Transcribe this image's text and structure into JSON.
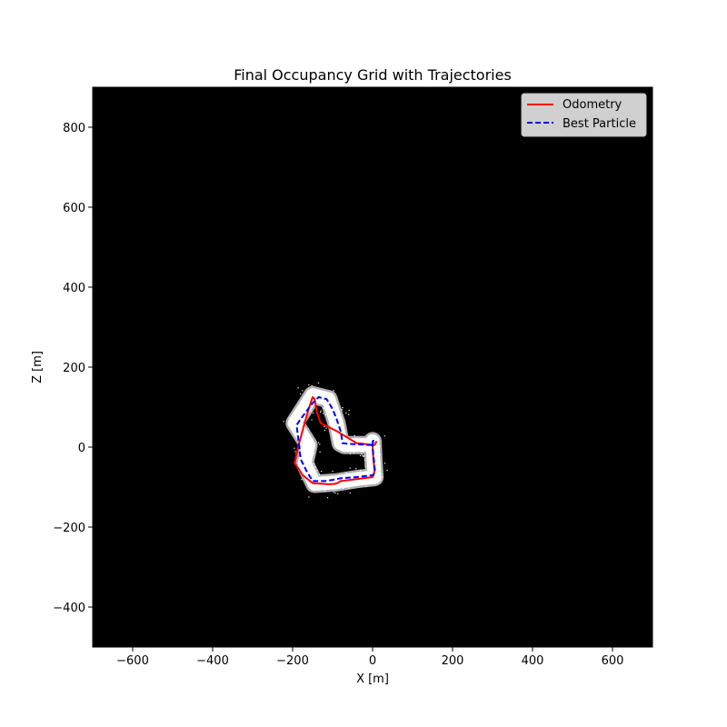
{
  "chart_data": {
    "type": "line",
    "title": "Final Occupancy Grid with Trajectories",
    "xlabel": "X [m]",
    "ylabel": "Z [m]",
    "xlim": [
      -700,
      700
    ],
    "ylim": [
      -500,
      900
    ],
    "xticks": [
      -600,
      -400,
      -200,
      0,
      200,
      400,
      600
    ],
    "yticks": [
      -400,
      -200,
      0,
      200,
      400,
      600,
      800
    ],
    "background": "occupancy-grid-black",
    "grid": false,
    "legend_position": "top-right",
    "series": [
      {
        "name": "Odometry",
        "color": "#ff0000",
        "style": "solid",
        "x": [
          0,
          0,
          2,
          5,
          0,
          -40,
          -80,
          -85,
          -88,
          -95,
          -110,
          -150,
          -175,
          -195,
          -185,
          -170,
          -160,
          -150,
          -145,
          -140,
          -130,
          -90,
          -40,
          5,
          10
        ],
        "y": [
          15,
          0,
          -30,
          -60,
          -75,
          -80,
          -85,
          -88,
          -90,
          -92,
          -93,
          -90,
          -70,
          -40,
          5,
          60,
          95,
          125,
          120,
          90,
          60,
          40,
          10,
          5,
          15
        ]
      },
      {
        "name": "Best Particle",
        "color": "#0000ff",
        "style": "dashed",
        "x": [
          0,
          0,
          3,
          6,
          2,
          -40,
          -80,
          -90,
          -100,
          -120,
          -150,
          -165,
          -180,
          -190,
          -180,
          -165,
          -150,
          -135,
          -115,
          -100,
          -90,
          -80,
          -75,
          -60,
          0,
          2
        ],
        "y": [
          15,
          0,
          -30,
          -60,
          -70,
          -75,
          -78,
          -80,
          -82,
          -85,
          -85,
          -60,
          -30,
          55,
          70,
          90,
          110,
          125,
          120,
          95,
          70,
          40,
          10,
          8,
          5,
          18
        ]
      }
    ],
    "occupancy": {
      "color": "#ffffff",
      "path_x": [
        0,
        2,
        5,
        -40,
        -90,
        -145,
        -170,
        -160,
        -195,
        -150,
        -110,
        -90,
        -80,
        -70,
        0
      ],
      "path_y": [
        15,
        -30,
        -75,
        -80,
        -88,
        -92,
        -40,
        5,
        60,
        130,
        120,
        60,
        10,
        5,
        5
      ]
    }
  }
}
